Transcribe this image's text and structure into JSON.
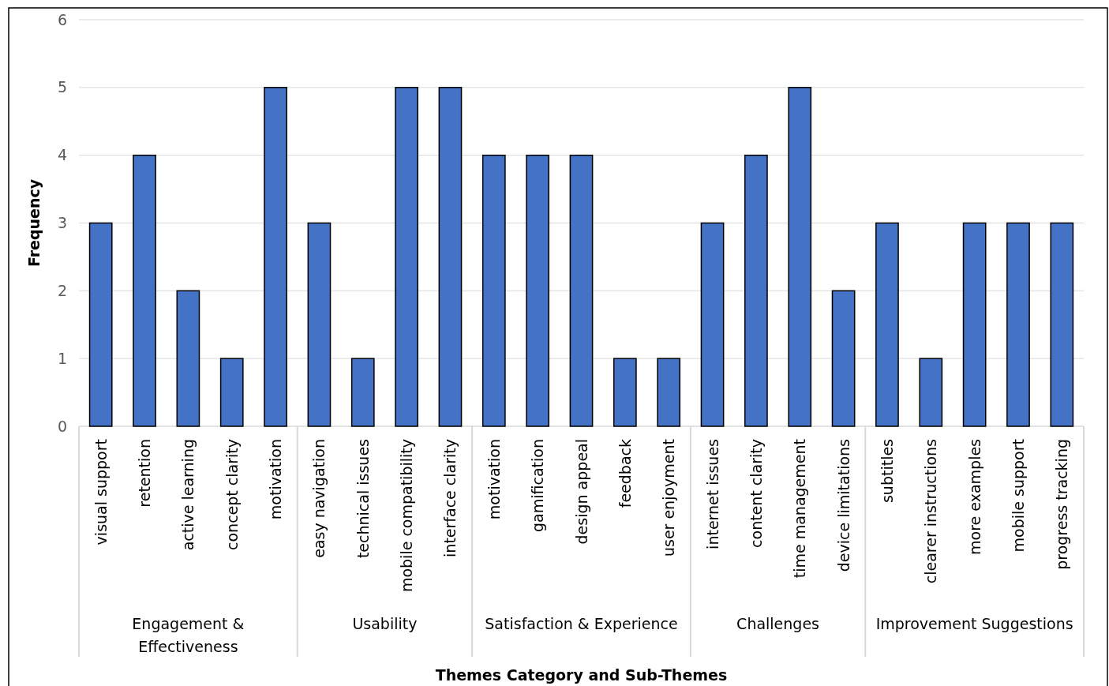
{
  "chart_data": {
    "type": "bar",
    "xlabel": "Themes Category and Sub-Themes",
    "ylabel": "Frequency",
    "categories": [
      "visual support",
      "retention",
      "active learning",
      "concept clarity",
      "motivation",
      "easy navigation",
      "technical issues",
      "mobile compatibility",
      "interface clarity",
      "motivation",
      "gamification",
      "design appeal",
      "feedback",
      "user enjoyment",
      "internet issues",
      "content clarity",
      "time management",
      "device limitations",
      "subtitles",
      "clearer instructions",
      "more examples",
      "mobile support",
      "progress tracking"
    ],
    "values": [
      3,
      4,
      2,
      1,
      5,
      3,
      1,
      5,
      5,
      4,
      4,
      4,
      1,
      1,
      3,
      4,
      5,
      2,
      3,
      1,
      3,
      3,
      3
    ],
    "color": "#4472c4",
    "ylim": [
      0,
      6
    ],
    "yticks": [
      0,
      1,
      2,
      3,
      4,
      5,
      6
    ],
    "grid": "y",
    "annotations": [
      "Engagement & Effectiveness",
      "Usability",
      "Satisfaction & Experience",
      "Challenges",
      "Improvement Suggestions"
    ]
  }
}
